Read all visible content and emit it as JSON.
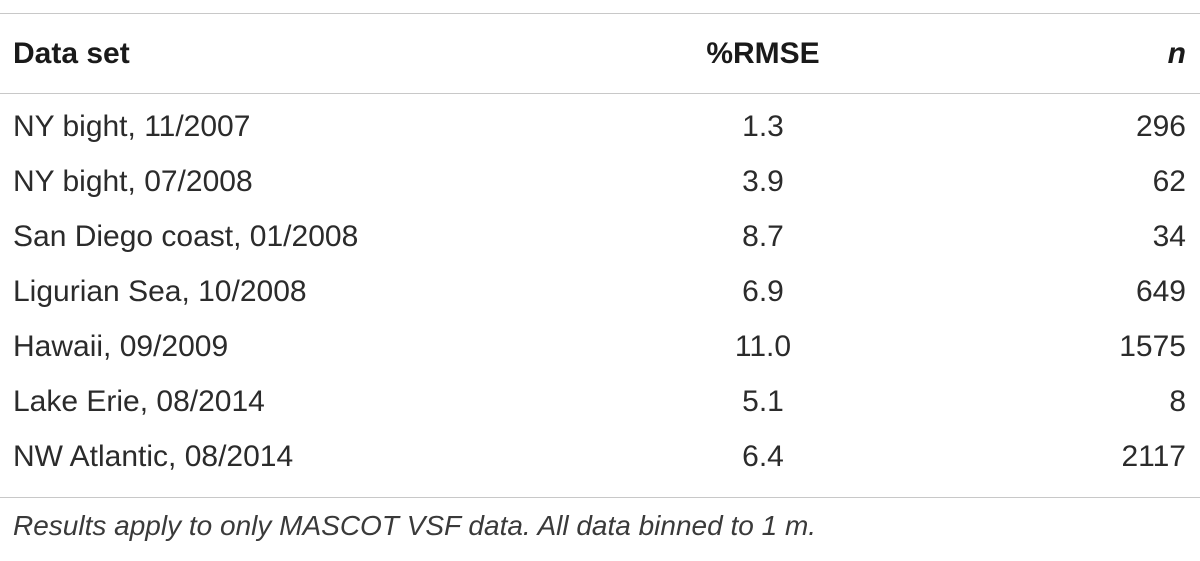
{
  "table": {
    "headers": {
      "dataset": "Data set",
      "rmse": "%RMSE",
      "n": "n"
    },
    "rows": [
      {
        "dataset": "NY bight, 11/2007",
        "rmse": "1.3",
        "n": "296"
      },
      {
        "dataset": "NY bight, 07/2008",
        "rmse": "3.9",
        "n": "62"
      },
      {
        "dataset": "San Diego coast, 01/2008",
        "rmse": "8.7",
        "n": "34"
      },
      {
        "dataset": "Ligurian Sea, 10/2008",
        "rmse": "6.9",
        "n": "649"
      },
      {
        "dataset": "Hawaii, 09/2009",
        "rmse": "11.0",
        "n": "1575"
      },
      {
        "dataset": "Lake Erie, 08/2014",
        "rmse": "5.1",
        "n": "8"
      },
      {
        "dataset": "NW Atlantic, 08/2014",
        "rmse": "6.4",
        "n": "2117"
      }
    ]
  },
  "footnote": "Results apply to only MASCOT VSF data. All data binned to 1 m."
}
